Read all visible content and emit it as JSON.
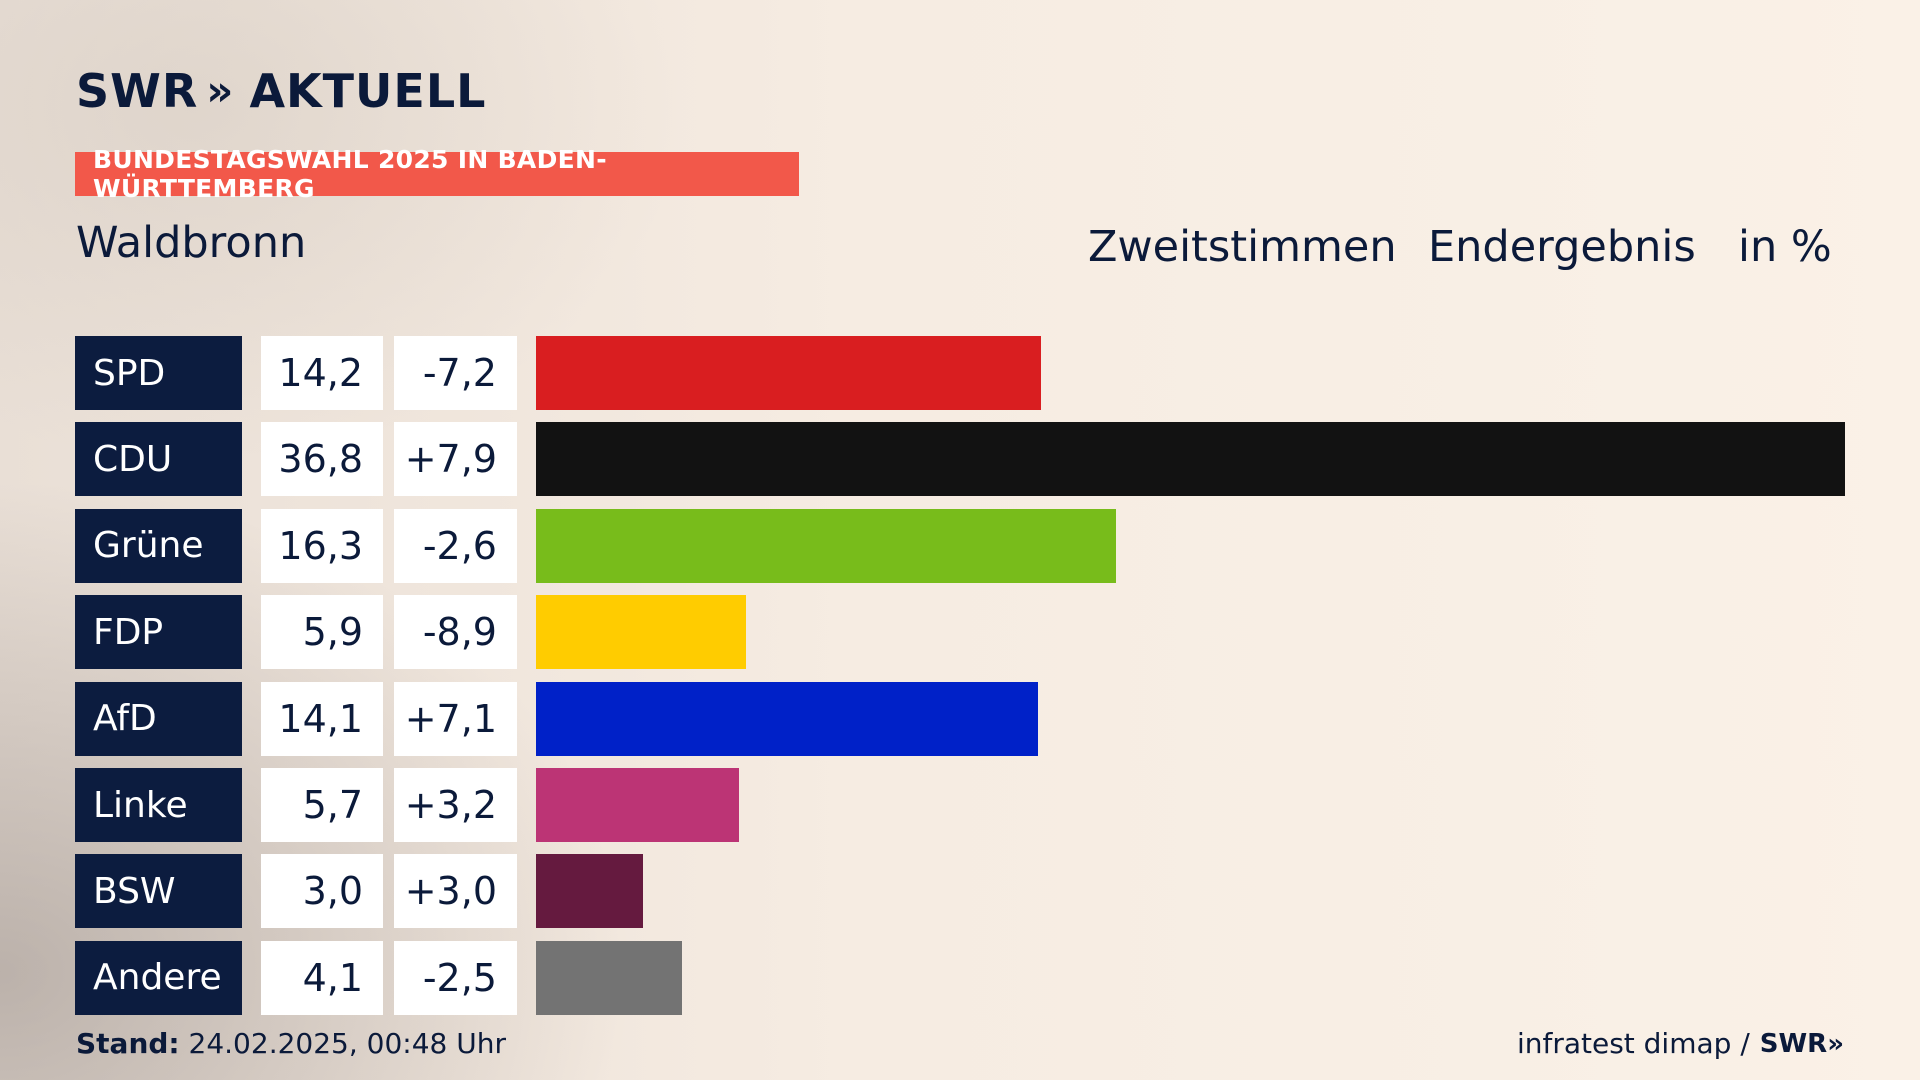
{
  "brand": {
    "logo_left": "SWR",
    "logo_chevrons": "»",
    "logo_right": "AKTUELL"
  },
  "banner": "BUNDESTAGSWAHL 2025 IN BADEN-WÜRTTEMBERG",
  "region": "Waldbronn",
  "headers": {
    "vote_type": "Zweitstimmen",
    "result": "Endergebnis",
    "unit": "in %"
  },
  "chart_data": {
    "type": "bar",
    "orientation": "horizontal",
    "categories": [
      "SPD",
      "CDU",
      "Grüne",
      "FDP",
      "AfD",
      "Linke",
      "BSW",
      "Andere"
    ],
    "values": [
      14.2,
      36.8,
      16.3,
      5.9,
      14.1,
      5.7,
      3.0,
      4.1
    ],
    "value_labels": [
      "14,2",
      "36,8",
      "16,3",
      "5,9",
      "14,1",
      "5,7",
      "3,0",
      "4,1"
    ],
    "diff_labels": [
      "-7,2",
      "+7,9",
      "-2,6",
      "-8,9",
      "+7,1",
      "+3,2",
      "+3,0",
      "-2,5"
    ],
    "colors": [
      "#d91e20",
      "#121212",
      "#78bc1b",
      "#ffcc00",
      "#0021c8",
      "#bc3475",
      "#651a3f",
      "#737373"
    ],
    "xlim": [
      0,
      36.8
    ]
  },
  "footer": {
    "stand_label": "Stand:",
    "stand_value": "24.02.2025, 00:48 Uhr",
    "source": "infratest dimap /",
    "source_logo": "SWR»"
  }
}
